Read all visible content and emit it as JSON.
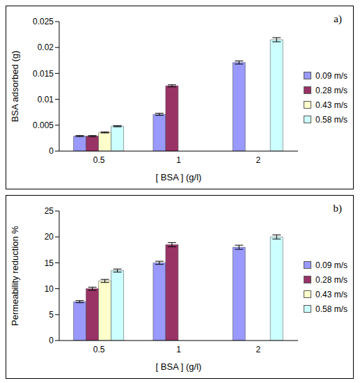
{
  "chart_data": [
    {
      "type": "bar",
      "title": "a)",
      "x_label": "[ BSA ] (g/l)",
      "y_label": "BSA adsorbed (g)",
      "categories": [
        "0.5",
        "1",
        "2"
      ],
      "series": [
        {
          "name": "0.09 m/s",
          "color": "#9999ff",
          "values": [
            0.0029,
            0.0071,
            0.0171
          ],
          "errors": [
            0.0001,
            0.0002,
            0.0003
          ]
        },
        {
          "name": "0.28 m/s",
          "color": "#993366",
          "values": [
            0.0029,
            0.0126,
            null
          ],
          "errors": [
            0.0001,
            0.0002,
            null
          ]
        },
        {
          "name": "0.43 m/s",
          "color": "#ffffcc",
          "values": [
            0.0036,
            null,
            null
          ],
          "errors": [
            0.0001,
            null,
            null
          ]
        },
        {
          "name": "0.58 m/s",
          "color": "#ccffff",
          "values": [
            0.0048,
            null,
            0.0215
          ],
          "errors": [
            0.0001,
            null,
            0.0004
          ]
        }
      ],
      "ylim": [
        0,
        0.025
      ],
      "yticks": [
        0,
        0.005,
        0.01,
        0.015,
        0.02,
        0.025
      ],
      "grid": false,
      "legend": "right"
    },
    {
      "type": "bar",
      "title": "b)",
      "x_label": "[ BSA ] (g/l)",
      "y_label": "Permeability reduction %",
      "categories": [
        "0.5",
        "1",
        "2"
      ],
      "series": [
        {
          "name": "0.09 m/s",
          "color": "#9999ff",
          "values": [
            7.5,
            15,
            18
          ],
          "errors": [
            0.2,
            0.3,
            0.4
          ]
        },
        {
          "name": "0.28 m/s",
          "color": "#993366",
          "values": [
            10,
            18.5,
            null
          ],
          "errors": [
            0.3,
            0.4,
            null
          ]
        },
        {
          "name": "0.43 m/s",
          "color": "#ffffcc",
          "values": [
            11.5,
            null,
            null
          ],
          "errors": [
            0.3,
            null,
            null
          ]
        },
        {
          "name": "0.58 m/s",
          "color": "#ccffff",
          "values": [
            13.5,
            null,
            20
          ],
          "errors": [
            0.3,
            null,
            0.4
          ]
        }
      ],
      "ylim": [
        0,
        25
      ],
      "yticks": [
        0,
        5,
        10,
        15,
        20,
        25
      ],
      "grid": false,
      "legend": "right"
    }
  ]
}
